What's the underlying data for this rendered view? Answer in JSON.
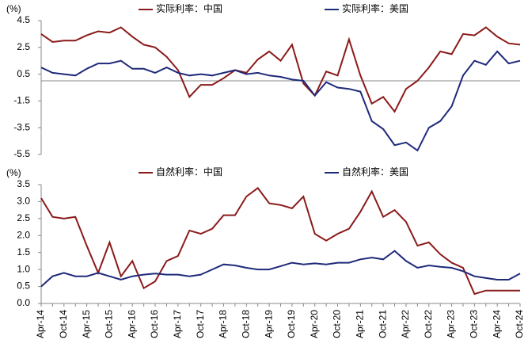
{
  "chart_data": [
    {
      "type": "line",
      "y_label": "(%)",
      "ylim": [
        -5.5,
        4.5
      ],
      "yticks": [
        4.5,
        2.5,
        0.5,
        -1.5,
        -3.5,
        -5.5
      ],
      "series": [
        {
          "name": "实际利率：中国",
          "color": "#8b1a1a",
          "values": [
            3.5,
            2.9,
            3.0,
            3.0,
            3.4,
            3.7,
            3.6,
            4.0,
            3.3,
            2.7,
            2.5,
            1.8,
            0.8,
            -1.2,
            -0.3,
            -0.3,
            0.2,
            0.8,
            0.6,
            1.6,
            2.2,
            1.5,
            2.7,
            -0.2,
            -1.1,
            0.7,
            0.4,
            3.1,
            0.4,
            -1.7,
            -1.2,
            -2.3,
            -0.6,
            0.0,
            1.0,
            2.2,
            2.0,
            3.5,
            3.4,
            4.0,
            3.3,
            2.8,
            2.7
          ]
        },
        {
          "name": "实际利率：美国",
          "color": "#1f2a7a",
          "values": [
            1.0,
            0.6,
            0.5,
            0.4,
            0.9,
            1.3,
            1.3,
            1.5,
            0.9,
            0.9,
            0.6,
            1.0,
            0.6,
            0.4,
            0.5,
            0.4,
            0.6,
            0.8,
            0.5,
            0.6,
            0.4,
            0.3,
            0.1,
            0.0,
            -1.1,
            -0.1,
            -0.5,
            -0.6,
            -0.8,
            -3.0,
            -3.6,
            -4.8,
            -4.6,
            -5.2,
            -3.5,
            -3.0,
            -1.9,
            0.4,
            1.5,
            1.2,
            2.2,
            1.3,
            1.5
          ]
        }
      ]
    },
    {
      "type": "line",
      "y_label": "(%)",
      "categories": [
        "Apr-14",
        null,
        "Oct-14",
        null,
        "Apr-15",
        null,
        "Oct-15",
        null,
        "Apr-16",
        null,
        "Oct-16",
        null,
        "Apr-17",
        null,
        "Oct-17",
        null,
        "Apr-18",
        null,
        "Oct-18",
        null,
        "Apr-19",
        null,
        "Oct-19",
        null,
        "Apr-20",
        null,
        "Oct-20",
        null,
        "Apr-21",
        null,
        "Oct-21",
        null,
        "Apr-22",
        null,
        "Oct-22",
        null,
        "Apr-23",
        null,
        "Oct-23",
        null,
        "Apr-24",
        null,
        "Oct-24"
      ],
      "ylim": [
        0,
        3.5
      ],
      "yticks": [
        {
          "value": 0,
          "label": "0.0"
        },
        0.5,
        {
          "value": 1,
          "label": "1.0"
        },
        1.5,
        {
          "value": 2,
          "label": "2.0"
        },
        2.5,
        {
          "value": 3,
          "label": "3.0"
        },
        3.5
      ],
      "series": [
        {
          "name": "自然利率：中国",
          "color": "#8b1a1a",
          "values": [
            3.1,
            2.55,
            2.5,
            2.55,
            1.7,
            0.9,
            1.8,
            0.8,
            1.25,
            0.45,
            0.65,
            1.25,
            1.4,
            2.15,
            2.05,
            2.2,
            2.6,
            2.6,
            3.15,
            3.4,
            2.95,
            2.9,
            2.8,
            3.15,
            2.05,
            1.85,
            2.05,
            2.2,
            2.7,
            3.3,
            2.55,
            2.75,
            2.4,
            1.7,
            1.8,
            1.45,
            1.2,
            1.05,
            0.28,
            0.38,
            0.38,
            0.38,
            0.38
          ]
        },
        {
          "name": "自然利率：美国",
          "color": "#1f2a7a",
          "values": [
            0.5,
            0.8,
            0.9,
            0.8,
            0.8,
            0.9,
            0.8,
            0.7,
            0.8,
            0.85,
            0.88,
            0.85,
            0.85,
            0.8,
            0.85,
            1.0,
            1.15,
            1.12,
            1.05,
            1.0,
            1.0,
            1.1,
            1.2,
            1.15,
            1.18,
            1.15,
            1.2,
            1.2,
            1.3,
            1.35,
            1.3,
            1.55,
            1.25,
            1.05,
            1.12,
            1.08,
            1.05,
            0.95,
            0.8,
            0.75,
            0.7,
            0.7,
            0.88
          ]
        }
      ]
    }
  ]
}
